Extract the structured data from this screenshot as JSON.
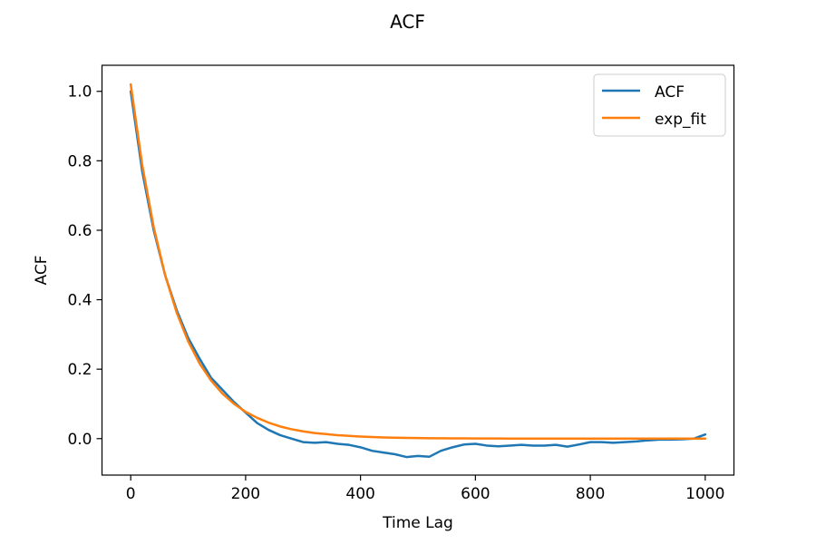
{
  "chart_data": {
    "type": "line",
    "title": "ACF",
    "xlabel": "Time Lag",
    "ylabel": "ACF",
    "xlim": [
      -50,
      1050
    ],
    "ylim": [
      -0.105,
      1.075
    ],
    "xticks": [
      0,
      200,
      400,
      600,
      800,
      1000
    ],
    "xtick_labels": [
      "0",
      "200",
      "400",
      "600",
      "800",
      "1000"
    ],
    "yticks": [
      0.0,
      0.2,
      0.4,
      0.6,
      0.8,
      1.0
    ],
    "ytick_labels": [
      "0.0",
      "0.2",
      "0.4",
      "0.6",
      "0.8",
      "1.0"
    ],
    "grid": false,
    "legend_position": "top-right",
    "series": [
      {
        "name": "ACF",
        "color": "#1f77b4",
        "x": [
          0,
          20,
          40,
          60,
          80,
          100,
          120,
          140,
          160,
          180,
          200,
          220,
          240,
          260,
          280,
          300,
          320,
          340,
          360,
          380,
          400,
          420,
          440,
          460,
          480,
          500,
          520,
          540,
          560,
          580,
          600,
          620,
          640,
          660,
          680,
          700,
          720,
          740,
          760,
          780,
          800,
          820,
          840,
          860,
          880,
          900,
          920,
          940,
          960,
          980,
          1000
        ],
        "y": [
          1.0,
          0.77,
          0.6,
          0.47,
          0.37,
          0.29,
          0.23,
          0.175,
          0.14,
          0.105,
          0.075,
          0.045,
          0.025,
          0.01,
          0.0,
          -0.01,
          -0.012,
          -0.01,
          -0.015,
          -0.018,
          -0.025,
          -0.035,
          -0.04,
          -0.045,
          -0.053,
          -0.05,
          -0.052,
          -0.035,
          -0.025,
          -0.017,
          -0.015,
          -0.02,
          -0.022,
          -0.02,
          -0.018,
          -0.02,
          -0.02,
          -0.018,
          -0.023,
          -0.017,
          -0.01,
          -0.01,
          -0.012,
          -0.01,
          -0.008,
          -0.005,
          -0.003,
          -0.003,
          -0.002,
          0.0,
          0.012
        ]
      },
      {
        "name": "exp_fit",
        "color": "#ff7f0e",
        "x": [
          0,
          20,
          40,
          60,
          80,
          100,
          120,
          140,
          160,
          180,
          200,
          220,
          240,
          260,
          280,
          300,
          320,
          340,
          360,
          380,
          400,
          420,
          440,
          460,
          480,
          500,
          520,
          540,
          560,
          580,
          600,
          620,
          640,
          660,
          680,
          700,
          720,
          740,
          760,
          780,
          800,
          820,
          840,
          860,
          880,
          900,
          920,
          940,
          960,
          980,
          1000
        ],
        "y": [
          1.02,
          0.788,
          0.609,
          0.47,
          0.363,
          0.28,
          0.216,
          0.167,
          0.129,
          0.1,
          0.077,
          0.06,
          0.046,
          0.035,
          0.027,
          0.021,
          0.016,
          0.013,
          0.01,
          0.008,
          0.006,
          0.0046,
          0.0035,
          0.0027,
          0.0021,
          0.0016,
          0.0012,
          0.001,
          0.0008,
          0.0006,
          0.0005,
          0.0004,
          0.0003,
          0.0002,
          0.0002,
          0.0001,
          0.0001,
          0.0001,
          0.0001,
          0.0001,
          0.0,
          0.0,
          0.0,
          0.0,
          0.0,
          0.0,
          0.0,
          0.0,
          0.0,
          0.0,
          0.0
        ]
      }
    ]
  }
}
